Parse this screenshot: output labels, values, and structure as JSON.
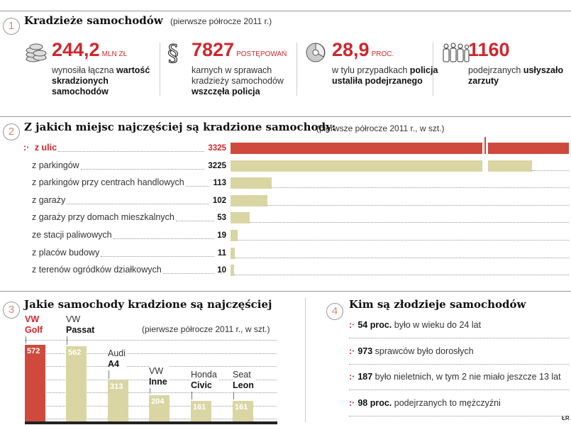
{
  "section1": {
    "number": "1",
    "title": "Kradzieże samochodów",
    "subtitle": "(pierwsze półrocze 2011 r.)",
    "stats": [
      {
        "icon": "coins-icon",
        "value": "244,2",
        "unit": "MLN ZŁ",
        "desc_plain": "wynosiła łączna",
        "desc_bold": "wartość skradzionych samochodów"
      },
      {
        "icon": "paragraph-icon",
        "value": "7827",
        "unit": "POSTĘPOWAŃ",
        "desc_plain": "karnych w sprawach kradzieży samochodów",
        "desc_bold": "wszczęła policja"
      },
      {
        "icon": "pie-icon",
        "value": "28,9",
        "unit": "PROC.",
        "desc_plain": "w tylu przypadkach",
        "desc_bold": "policja ustaliła podejrzanego"
      },
      {
        "icon": "people-icon",
        "value": "1160",
        "unit": "",
        "desc_plain": "podejrzanych",
        "desc_bold": "usłyszało zarzuty"
      }
    ]
  },
  "section2": {
    "number": "2"
  },
  "section3": {
    "number": "3"
  },
  "chart_data": [
    {
      "type": "bar",
      "orientation": "horizontal",
      "title": "Z jakich miejsc najczęściej są kradzione samochody:",
      "subtitle": "(pierwsze półrocze 2011 r., w szt.)",
      "categories": [
        "z ulic",
        "z parkingów",
        "z parkingów przy centrach handlowych",
        "z garaży",
        "z garaży przy domach mieszkalnych",
        "ze stacji paliwowych",
        "z placów budowy",
        "z terenów ogródków działkowych"
      ],
      "values": [
        3325,
        3225,
        113,
        102,
        53,
        19,
        11,
        10
      ],
      "value_labels": [
        "3325",
        "3225",
        "113",
        "102",
        "53",
        "19",
        "11",
        "10"
      ],
      "highlight_index": 0,
      "axis_break": true,
      "colors": {
        "highlight": "#cf4a3c",
        "default": "#d9d6a4"
      }
    },
    {
      "type": "bar",
      "orientation": "vertical",
      "title": "Jakie samochody kradzione są najczęściej",
      "subtitle": "(pierwsze półrocze 2011 r., w szt.)",
      "categories": [
        {
          "make": "VW",
          "model": "Golf"
        },
        {
          "make": "VW",
          "model": "Passat"
        },
        {
          "make": "Audi",
          "model": "A4"
        },
        {
          "make": "VW",
          "model": "Inne"
        },
        {
          "make": "Honda",
          "model": "Civic"
        },
        {
          "make": "Seat",
          "model": "Leon"
        }
      ],
      "values": [
        572,
        562,
        313,
        204,
        161,
        161
      ],
      "value_labels": [
        "572",
        "562",
        "313",
        "204",
        "161",
        "161"
      ],
      "highlight_index": 0,
      "grid": true,
      "colors": {
        "highlight": "#cf4a3c",
        "default": "#d9d6a4"
      }
    }
  ],
  "section4": {
    "number": "4",
    "title": "Kim są złodzieje samochodów",
    "items": [
      {
        "bold": "54 proc.",
        "text": "było w wieku do 24 lat"
      },
      {
        "bold": "973",
        "text": "sprawców było dorosłych"
      },
      {
        "bold": "187",
        "text": "było nieletnich, w tym 2 nie miało jeszcze 13 lat"
      },
      {
        "bold": "98 proc.",
        "text": "podejrzanych to mężczyźni"
      }
    ],
    "bullet": ":·"
  },
  "credit": "ŁR"
}
